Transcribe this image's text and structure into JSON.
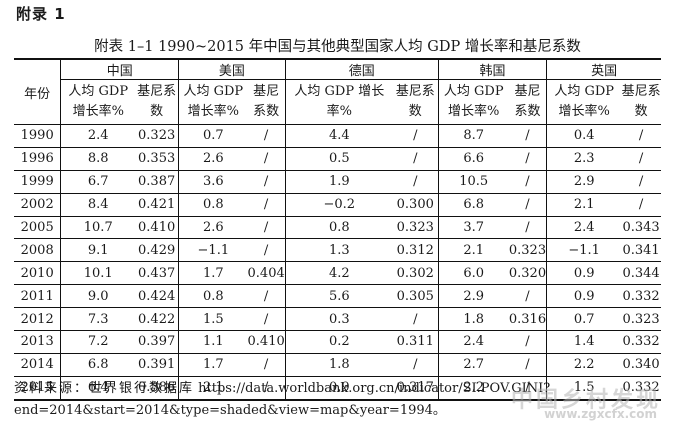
{
  "appendix_label": "附录 1",
  "table_title": "附表 1–1   1990~2015 年中国与其他典型国家人均 GDP 增长率和基尼系数",
  "header": {
    "year": "年份",
    "countries": [
      "中国",
      "美国",
      "德国",
      "韩国",
      "英国"
    ],
    "growth_label": "人均 GDP 增长率%",
    "gini_label": "基尼系数"
  },
  "rows": [
    {
      "year": "1990",
      "cells": [
        "2.4",
        "0.323",
        "0.7",
        "/",
        "4.4",
        "/",
        "8.7",
        "/",
        "0.4",
        "/"
      ]
    },
    {
      "year": "1996",
      "cells": [
        "8.8",
        "0.353",
        "2.6",
        "/",
        "0.5",
        "/",
        "6.6",
        "/",
        "2.3",
        "/"
      ]
    },
    {
      "year": "1999",
      "cells": [
        "6.7",
        "0.387",
        "3.6",
        "/",
        "1.9",
        "/",
        "10.5",
        "/",
        "2.9",
        "/"
      ]
    },
    {
      "year": "2002",
      "cells": [
        "8.4",
        "0.421",
        "0.8",
        "/",
        "−0.2",
        "0.300",
        "6.8",
        "/",
        "2.1",
        "/"
      ]
    },
    {
      "year": "2005",
      "cells": [
        "10.7",
        "0.410",
        "2.6",
        "/",
        "0.8",
        "0.323",
        "3.7",
        "/",
        "2.4",
        "0.343"
      ]
    },
    {
      "year": "2008",
      "cells": [
        "9.1",
        "0.429",
        "−1.1",
        "/",
        "1.3",
        "0.312",
        "2.1",
        "0.323",
        "−1.1",
        "0.341"
      ]
    },
    {
      "year": "2010",
      "cells": [
        "10.1",
        "0.437",
        "1.7",
        "0.404",
        "4.2",
        "0.302",
        "6.0",
        "0.320",
        "0.9",
        "0.344"
      ]
    },
    {
      "year": "2011",
      "cells": [
        "9.0",
        "0.424",
        "0.8",
        "/",
        "5.6",
        "0.305",
        "2.9",
        "/",
        "0.9",
        "0.332"
      ]
    },
    {
      "year": "2012",
      "cells": [
        "7.3",
        "0.422",
        "1.5",
        "/",
        "0.3",
        "/",
        "1.8",
        "0.316",
        "0.7",
        "0.323"
      ]
    },
    {
      "year": "2013",
      "cells": [
        "7.2",
        "0.397",
        "1.1",
        "0.410",
        "0.2",
        "0.311",
        "2.4",
        "/",
        "1.4",
        "0.332"
      ]
    },
    {
      "year": "2014",
      "cells": [
        "6.8",
        "0.391",
        "1.7",
        "/",
        "1.8",
        "/",
        "2.7",
        "/",
        "2.2",
        "0.340"
      ]
    },
    {
      "year": "2015",
      "cells": [
        "6.4",
        "0.386",
        "2.1",
        "/",
        "0.9",
        "0.317",
        "2.2",
        "/",
        "1.5",
        "0.332"
      ]
    }
  ],
  "source": {
    "lead": "资料来源：世界银行数据库",
    "url": "https://data.worldbank.org.cn/indicator/SI.POV.GINI?end=2014&start=2014&type=shaded&view=map&year=1994。"
  },
  "watermark": {
    "text": "中国乡村发现",
    "url": "www.zgxcfx.com"
  }
}
